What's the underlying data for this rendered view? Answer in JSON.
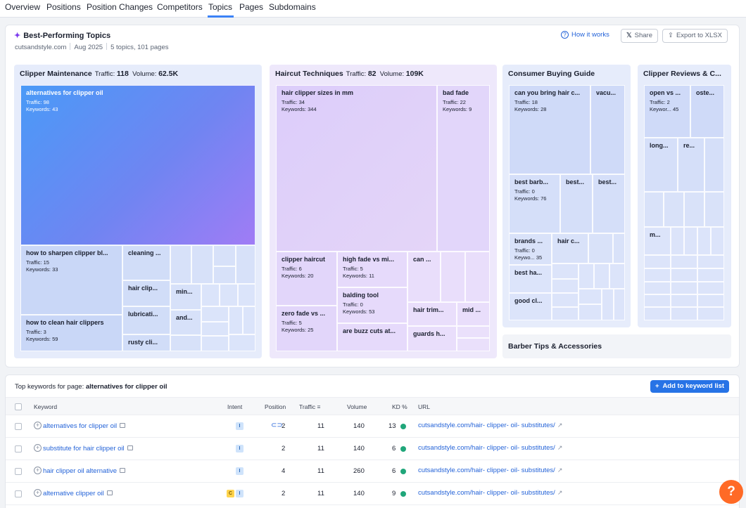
{
  "nav": {
    "tabs": [
      "Overview",
      "Positions",
      "Position Changes",
      "Competitors",
      "Topics",
      "Pages",
      "Subdomains"
    ],
    "active": "Topics"
  },
  "header": {
    "title": "Best-Performing Topics",
    "domain": "cutsandstyle.com",
    "date": "Aug 2025",
    "summary": "5 topics, 101 pages",
    "how_it_works": "How it works",
    "share": "Share",
    "export": "Export to XLSX"
  },
  "labels": {
    "traffic": "Traffic:",
    "volume": "Volume:",
    "keywords": "Keywords:"
  },
  "topics": [
    {
      "name": "Clipper Maintenance",
      "traffic": "118",
      "volume": "62.5K",
      "tiles": [
        {
          "name": "alternatives for clipper oil",
          "traffic": "98",
          "keywords": "43"
        },
        {
          "name": "how to sharpen clipper bl...",
          "traffic": "15",
          "keywords": "33"
        },
        {
          "name": "how to clean hair clippers",
          "traffic": "3",
          "keywords": "59"
        },
        {
          "name": "cleaning ..."
        },
        {
          "name": "hair clip..."
        },
        {
          "name": "lubricati..."
        },
        {
          "name": "rusty cli..."
        },
        {
          "name": "min..."
        },
        {
          "name": "and..."
        }
      ]
    },
    {
      "name": "Haircut Techniques",
      "traffic": "82",
      "volume": "109K",
      "tiles": [
        {
          "name": "hair clipper sizes in mm",
          "traffic": "34",
          "keywords": "344"
        },
        {
          "name": "bad fade",
          "traffic": "22",
          "keywords": "9"
        },
        {
          "name": "clipper haircut",
          "traffic": "6",
          "keywords": "20"
        },
        {
          "name": "high fade vs mi...",
          "traffic": "5",
          "keywords": "11"
        },
        {
          "name": "balding tool",
          "traffic": "0",
          "keywords": "53"
        },
        {
          "name": "zero fade vs ...",
          "traffic": "5",
          "keywords": "25"
        },
        {
          "name": "are buzz cuts at..."
        },
        {
          "name": "can ..."
        },
        {
          "name": "hair trim..."
        },
        {
          "name": "mid ..."
        },
        {
          "name": "guards h..."
        }
      ]
    },
    {
      "name": "Consumer Buying Guide",
      "tiles": [
        {
          "name": "can you bring hair c...",
          "traffic": "18",
          "keywords": "28"
        },
        {
          "name": "vacu..."
        },
        {
          "name": "best barb...",
          "traffic": "0",
          "keywords": "76"
        },
        {
          "name": "best..."
        },
        {
          "name": "best..."
        },
        {
          "name": "brands ...",
          "traffic": "0",
          "keywords_short": "Keywo...",
          "keywords": "35"
        },
        {
          "name": "hair c..."
        },
        {
          "name": "best ha..."
        },
        {
          "name": "good cl..."
        }
      ]
    },
    {
      "name": "Clipper Reviews & C...",
      "tiles": [
        {
          "name": "open vs ...",
          "traffic": "2",
          "keywords_short": "Keywor...",
          "keywords": "45"
        },
        {
          "name": "oste..."
        },
        {
          "name": "long..."
        },
        {
          "name": "re..."
        },
        {
          "name": "m..."
        }
      ]
    },
    {
      "name": "Barber Tips & Accessories"
    }
  ],
  "keywords_table": {
    "title_prefix": "Top keywords for page:",
    "page": "alternatives for clipper oil",
    "add_button": "Add to keyword list",
    "columns": [
      "Keyword",
      "Intent",
      "Position",
      "Traffic",
      "Volume",
      "KD %",
      "URL"
    ],
    "rows": [
      {
        "keyword": "alternatives for clipper oil",
        "intent": [
          "I"
        ],
        "position": "2",
        "traffic": "11",
        "volume": "140",
        "kd": "13",
        "url": "cutsandstyle.com/hair- clipper- oil- substitutes/"
      },
      {
        "keyword": "substitute for hair clipper oil",
        "intent": [
          "I"
        ],
        "position": "2",
        "traffic": "11",
        "volume": "140",
        "kd": "6",
        "url": "cutsandstyle.com/hair- clipper- oil- substitutes/"
      },
      {
        "keyword": "hair clipper oil alternative",
        "intent": [
          "I"
        ],
        "position": "4",
        "traffic": "11",
        "volume": "260",
        "kd": "6",
        "url": "cutsandstyle.com/hair- clipper- oil- substitutes/"
      },
      {
        "keyword": "alternative clipper oil",
        "intent": [
          "C",
          "I"
        ],
        "position": "2",
        "traffic": "11",
        "volume": "140",
        "kd": "9",
        "url": "cutsandstyle.com/hair- clipper- oil- substitutes/"
      }
    ]
  },
  "help_label": "?",
  "colors": {
    "accent": "#2773e6",
    "kd_easy": "#20a67a",
    "help": "#ff6a26"
  }
}
